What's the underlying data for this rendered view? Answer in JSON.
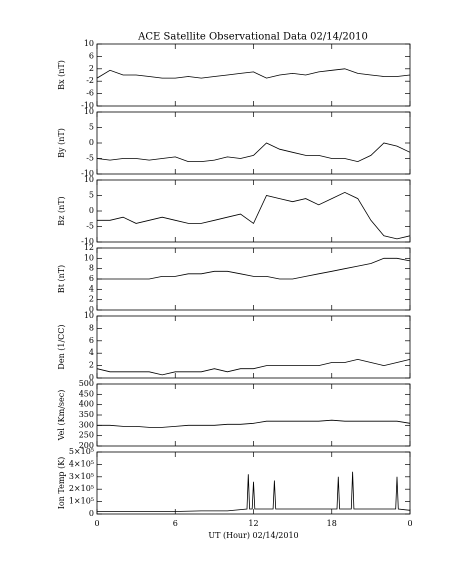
{
  "chart_data": [
    {
      "type": "line",
      "title": "ACE Satellite Observational Data   02/14/2010",
      "ylabel": "Bx (nT)",
      "x": [
        0,
        1,
        2,
        3,
        4,
        5,
        6,
        7,
        8,
        9,
        10,
        11,
        12,
        13,
        14,
        15,
        16,
        17,
        18,
        19,
        20,
        21,
        22,
        23,
        24
      ],
      "values": [
        -1,
        1.5,
        0,
        0,
        -0.5,
        -1,
        -1,
        -0.5,
        -1,
        -0.5,
        0,
        0.5,
        1,
        -1,
        0,
        0.5,
        0,
        1,
        1.5,
        2,
        0.5,
        0,
        -0.5,
        -0.5,
        0
      ],
      "ylim": [
        -10,
        10
      ],
      "yticks": [
        -10,
        -6,
        -2,
        2,
        6,
        10
      ],
      "xlim": [
        0,
        24
      ]
    },
    {
      "type": "line",
      "ylabel": "By (nT)",
      "x": [
        0,
        1,
        2,
        3,
        4,
        5,
        6,
        7,
        8,
        9,
        10,
        11,
        12,
        13,
        14,
        15,
        16,
        17,
        18,
        19,
        20,
        21,
        22,
        23,
        24
      ],
      "values": [
        -5,
        -5.5,
        -5,
        -5,
        -5.5,
        -5,
        -4.5,
        -6,
        -6,
        -5.5,
        -4.5,
        -5,
        -4,
        0,
        -2,
        -3,
        -4,
        -4,
        -5,
        -5,
        -6,
        -4,
        0,
        -1,
        -3
      ],
      "ylim": [
        -10,
        10
      ],
      "yticks": [
        -10,
        -5,
        0,
        5,
        10
      ],
      "xlim": [
        0,
        24
      ]
    },
    {
      "type": "line",
      "ylabel": "Bz (nT)",
      "x": [
        0,
        1,
        2,
        3,
        4,
        5,
        6,
        7,
        8,
        9,
        10,
        11,
        12,
        13,
        14,
        15,
        16,
        17,
        18,
        19,
        20,
        21,
        22,
        23,
        24
      ],
      "values": [
        -3,
        -3,
        -2,
        -4,
        -3,
        -2,
        -3,
        -4,
        -4,
        -3,
        -2,
        -1,
        -4,
        5,
        4,
        3,
        4,
        2,
        4,
        6,
        4,
        -3,
        -8,
        -9,
        -8
      ],
      "ylim": [
        -10,
        10
      ],
      "yticks": [
        -10,
        -5,
        0,
        5,
        10
      ],
      "xlim": [
        0,
        24
      ]
    },
    {
      "type": "line",
      "ylabel": "Bt (nT)",
      "x": [
        0,
        1,
        2,
        3,
        4,
        5,
        6,
        7,
        8,
        9,
        10,
        11,
        12,
        13,
        14,
        15,
        16,
        17,
        18,
        19,
        20,
        21,
        22,
        23,
        24
      ],
      "values": [
        6,
        6,
        6,
        6,
        6,
        6.5,
        6.5,
        7,
        7,
        7.5,
        7.5,
        7,
        6.5,
        6.5,
        6,
        6,
        6.5,
        7,
        7.5,
        8,
        8.5,
        9,
        10,
        10,
        9.5
      ],
      "ylim": [
        0,
        12
      ],
      "yticks": [
        0,
        2,
        4,
        6,
        8,
        10,
        12
      ],
      "xlim": [
        0,
        24
      ]
    },
    {
      "type": "line",
      "ylabel": "Den (1/CC)",
      "x": [
        0,
        1,
        2,
        3,
        4,
        5,
        6,
        7,
        8,
        9,
        10,
        11,
        12,
        13,
        14,
        15,
        16,
        17,
        18,
        19,
        20,
        21,
        22,
        23,
        24
      ],
      "values": [
        1.5,
        1,
        1,
        1,
        1,
        0.5,
        1,
        1,
        1,
        1.5,
        1,
        1.5,
        1.5,
        2,
        2,
        2,
        2,
        2,
        2.5,
        2.5,
        3,
        2.5,
        2,
        2.5,
        3
      ],
      "ylim": [
        0,
        10
      ],
      "yticks": [
        0,
        2,
        4,
        6,
        8,
        10
      ],
      "xlim": [
        0,
        24
      ]
    },
    {
      "type": "line",
      "ylabel": "Vel (Km/sec)",
      "x": [
        0,
        1,
        2,
        3,
        4,
        5,
        6,
        7,
        8,
        9,
        10,
        11,
        12,
        13,
        14,
        15,
        16,
        17,
        18,
        19,
        20,
        21,
        22,
        23,
        24
      ],
      "values": [
        300,
        300,
        295,
        295,
        290,
        290,
        295,
        300,
        300,
        300,
        305,
        305,
        310,
        320,
        320,
        320,
        320,
        320,
        325,
        320,
        320,
        320,
        320,
        320,
        310
      ],
      "ylim": [
        200,
        500
      ],
      "yticks": [
        200,
        250,
        300,
        350,
        400,
        450,
        500
      ],
      "xlim": [
        0,
        24
      ]
    },
    {
      "type": "line",
      "ylabel": "Ion Temp (K)",
      "x": [
        0,
        2,
        4,
        6,
        8,
        10,
        11.5,
        11.6,
        11.7,
        11.9,
        12.0,
        12.1,
        13.5,
        13.6,
        13.7,
        16,
        18.4,
        18.5,
        18.6,
        19.5,
        19.6,
        19.7,
        22.9,
        23.0,
        23.1,
        24
      ],
      "values": [
        20000,
        20000,
        20000,
        20000,
        25000,
        25000,
        40000,
        320000,
        40000,
        40000,
        260000,
        40000,
        40000,
        270000,
        40000,
        40000,
        40000,
        300000,
        40000,
        40000,
        340000,
        40000,
        40000,
        300000,
        40000,
        30000
      ],
      "ylim": [
        0,
        500000
      ],
      "yticks": [
        0,
        {
          "value": 100000,
          "label": "1×10⁵"
        },
        {
          "value": 200000,
          "label": "2×10⁵"
        },
        {
          "value": 300000,
          "label": "3×10⁵"
        },
        {
          "value": 400000,
          "label": "4×10⁵"
        },
        {
          "value": 500000,
          "label": "5×10⁵"
        }
      ],
      "xlim": [
        0,
        24
      ],
      "xticks": [
        0,
        6,
        12,
        18,
        {
          "value": 24,
          "label": "0"
        }
      ],
      "xlabel": "UT (Hour)   02/14/2010"
    }
  ]
}
